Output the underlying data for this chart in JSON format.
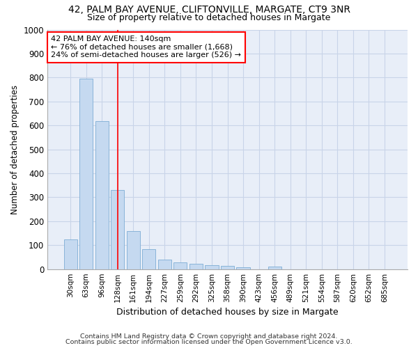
{
  "title1": "42, PALM BAY AVENUE, CLIFTONVILLE, MARGATE, CT9 3NR",
  "title2": "Size of property relative to detached houses in Margate",
  "xlabel": "Distribution of detached houses by size in Margate",
  "ylabel": "Number of detached properties",
  "categories": [
    "30sqm",
    "63sqm",
    "96sqm",
    "128sqm",
    "161sqm",
    "194sqm",
    "227sqm",
    "259sqm",
    "292sqm",
    "325sqm",
    "358sqm",
    "390sqm",
    "423sqm",
    "456sqm",
    "489sqm",
    "521sqm",
    "554sqm",
    "587sqm",
    "620sqm",
    "652sqm",
    "685sqm"
  ],
  "values": [
    125,
    795,
    617,
    330,
    160,
    83,
    40,
    27,
    23,
    17,
    15,
    8,
    0,
    10,
    0,
    0,
    0,
    0,
    0,
    0,
    0
  ],
  "bar_color": "#c5d9f0",
  "bar_edgecolor": "#7dadd4",
  "grid_color": "#c8d4e8",
  "redline_x": 3.0,
  "annotation_line1": "42 PALM BAY AVENUE: 140sqm",
  "annotation_line2": "← 76% of detached houses are smaller (1,668)",
  "annotation_line3": "24% of semi-detached houses are larger (526) →",
  "annotation_box_color": "white",
  "annotation_box_edgecolor": "red",
  "redline_color": "red",
  "footer1": "Contains HM Land Registry data © Crown copyright and database right 2024.",
  "footer2": "Contains public sector information licensed under the Open Government Licence v3.0.",
  "ylim": [
    0,
    1000
  ],
  "fig_bg": "#ffffff",
  "plot_bg": "#e8eef8"
}
